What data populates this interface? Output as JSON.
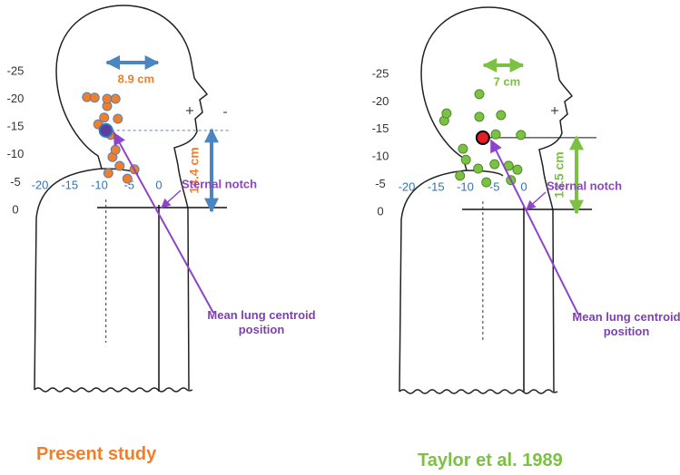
{
  "chart_data": [
    {
      "type": "scatter",
      "title": "Present study",
      "xlim": [
        -20,
        0
      ],
      "ylim": [
        -25,
        0
      ],
      "xticks": [
        -20,
        -15,
        -10,
        -5,
        0
      ],
      "yticks": [
        0,
        -5,
        -10,
        -15,
        -20,
        -25
      ],
      "series": [
        {
          "color": "#f07f2b",
          "edge_color": "#5a7fb8",
          "x": [
            -8.5,
            -5.3,
            -4.1,
            -6.6,
            -7.8,
            -7.3,
            -8.1,
            -10.2,
            -9.2,
            -6.9,
            -8.7,
            -12.1,
            -10.8,
            -8.7,
            -7.3
          ],
          "values": [
            -6.7,
            -5.7,
            -7.4,
            -8.0,
            -9.6,
            -10.9,
            -13.6,
            -15.5,
            -16.7,
            -16.5,
            -18.8,
            -20.4,
            -20.3,
            -20.1,
            -20.1
          ]
        }
      ],
      "mean": {
        "x": -8.9,
        "y": -14.4,
        "color": "#5b3fa0",
        "edge_color": "#2e75b6"
      },
      "arrow_color": "#4a86c0",
      "landmark": "Sternal notch",
      "vertical_label": "14.4 cm",
      "horizontal_label": "8.9 cm",
      "callout": "Mean lung centroid position"
    },
    {
      "type": "scatter",
      "title": "Taylor et al. 1989",
      "xlim": [
        -20,
        0
      ],
      "ylim": [
        -25,
        0
      ],
      "xticks": [
        -20,
        -15,
        -10,
        -5,
        0
      ],
      "yticks": [
        0,
        -5,
        -10,
        -15,
        -20,
        -25
      ],
      "series": [
        {
          "color": "#7cc143",
          "edge_color": "#4e8a2a",
          "x": [
            -10.9,
            -6.4,
            -2.2,
            -7.8,
            -5.0,
            -2.6,
            -1.1,
            -9.9,
            -10.4,
            -4.8,
            -0.5,
            -13.6,
            -13.2,
            -7.6,
            -3.9,
            -7.6
          ],
          "values": [
            -6.6,
            -5.4,
            -5.8,
            -7.9,
            -8.7,
            -8.4,
            -7.7,
            -9.5,
            -11.5,
            -14.1,
            -14.0,
            -16.6,
            -17.9,
            -17.3,
            -17.6,
            -21.4
          ]
        }
      ],
      "mean": {
        "x": -7,
        "y": -13.5,
        "color": "#e31e24",
        "edge_color": "#000000"
      },
      "arrow_color": "#7cc143",
      "landmark": "Sternal notch",
      "vertical_label": "13.5 cm",
      "horizontal_label": "7 cm",
      "callout": "Mean lung centroid position"
    }
  ]
}
